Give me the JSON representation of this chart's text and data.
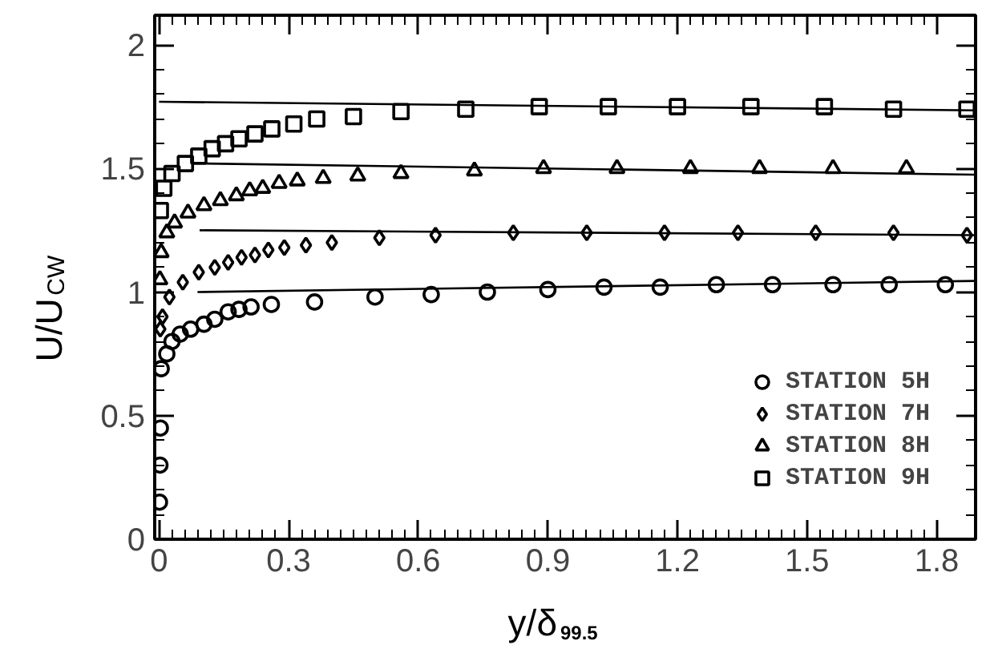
{
  "chart_data": {
    "type": "scatter",
    "xlabel": "y/δ$_{99.5}$",
    "ylabel": "U/U$_{CW}$",
    "xlim": [
      -0.01,
      1.89
    ],
    "ylim": [
      0,
      2.12
    ],
    "xticks": [
      0,
      0.3,
      0.6,
      0.9,
      1.2,
      1.5,
      1.8
    ],
    "yticks": [
      0,
      0.5,
      1,
      1.5,
      2
    ],
    "grid": false,
    "legend": "bottom right",
    "series": [
      {
        "name": "STATION 5H",
        "marker": "circle",
        "color": "#000000",
        "x": [
          0.001,
          0.002,
          0.003,
          0.005,
          0.018,
          0.03,
          0.049,
          0.073,
          0.104,
          0.129,
          0.16,
          0.185,
          0.213,
          0.26,
          0.36,
          0.5,
          0.63,
          0.76,
          0.9,
          1.03,
          1.16,
          1.29,
          1.42,
          1.56,
          1.69,
          1.82
        ],
        "values": [
          0.15,
          0.3,
          0.45,
          0.69,
          0.75,
          0.8,
          0.83,
          0.85,
          0.87,
          0.89,
          0.92,
          0.93,
          0.94,
          0.95,
          0.96,
          0.98,
          0.99,
          1.0,
          1.01,
          1.02,
          1.02,
          1.03,
          1.03,
          1.03,
          1.03,
          1.03
        ]
      },
      {
        "name": "STATION 7H",
        "marker": "diamond",
        "color": "#000000",
        "x": [
          0.003,
          0.008,
          0.024,
          0.055,
          0.092,
          0.129,
          0.16,
          0.191,
          0.222,
          0.253,
          0.29,
          0.34,
          0.4,
          0.51,
          0.64,
          0.82,
          0.99,
          1.17,
          1.34,
          1.52,
          1.7,
          1.87
        ],
        "values": [
          0.85,
          0.9,
          0.98,
          1.04,
          1.08,
          1.1,
          1.12,
          1.14,
          1.15,
          1.17,
          1.18,
          1.19,
          1.2,
          1.22,
          1.23,
          1.24,
          1.24,
          1.24,
          1.24,
          1.24,
          1.24,
          1.23
        ]
      },
      {
        "name": "STATION 8H",
        "marker": "triangle",
        "color": "#000000",
        "x": [
          0.002,
          0.005,
          0.018,
          0.036,
          0.067,
          0.104,
          0.142,
          0.179,
          0.21,
          0.24,
          0.278,
          0.32,
          0.38,
          0.46,
          0.56,
          0.73,
          0.89,
          1.06,
          1.23,
          1.39,
          1.56,
          1.73
        ],
        "values": [
          1.05,
          1.16,
          1.24,
          1.28,
          1.32,
          1.35,
          1.37,
          1.39,
          1.41,
          1.42,
          1.44,
          1.45,
          1.46,
          1.47,
          1.48,
          1.49,
          1.5,
          1.5,
          1.5,
          1.5,
          1.5,
          1.5
        ]
      },
      {
        "name": "STATION 9H",
        "marker": "square",
        "color": "#000000",
        "x": [
          0.003,
          0.011,
          0.03,
          0.061,
          0.092,
          0.123,
          0.154,
          0.185,
          0.222,
          0.261,
          0.312,
          0.365,
          0.45,
          0.56,
          0.71,
          0.88,
          1.04,
          1.2,
          1.37,
          1.54,
          1.7,
          1.87
        ],
        "values": [
          1.33,
          1.42,
          1.48,
          1.52,
          1.55,
          1.58,
          1.6,
          1.62,
          1.64,
          1.66,
          1.68,
          1.7,
          1.71,
          1.73,
          1.74,
          1.75,
          1.75,
          1.75,
          1.75,
          1.75,
          1.74,
          1.74
        ]
      },
      {
        "type": "line",
        "line_style": "solid",
        "color": "#000000",
        "x": [
          0.089,
          1.887
        ],
        "values": [
          1.0,
          1.045
        ]
      },
      {
        "type": "line",
        "line_style": "solid",
        "color": "#000000",
        "x": [
          0.094,
          1.887
        ],
        "values": [
          1.25,
          1.23
        ]
      },
      {
        "type": "line",
        "line_style": "solid",
        "color": "#000000",
        "x": [
          0.11,
          1.887
        ],
        "values": [
          1.52,
          1.475
        ]
      },
      {
        "type": "line",
        "line_style": "solid",
        "color": "#000000",
        "x": [
          0.0,
          1.887
        ],
        "values": [
          1.77,
          1.735
        ]
      }
    ]
  }
}
